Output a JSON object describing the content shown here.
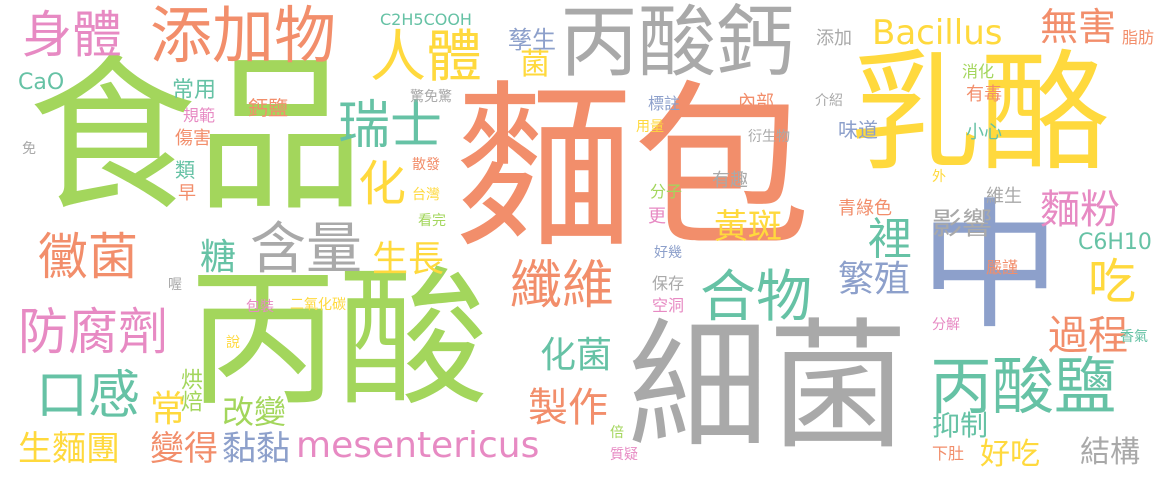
{
  "word_cloud": {
    "words": [
      {
        "id": "mianbao",
        "text": "麵包",
        "color": "#f28e6b"
      },
      {
        "id": "shipin",
        "text": "食品",
        "color": "#a3d65c"
      },
      {
        "id": "bingsuan",
        "text": "丙酸",
        "color": "#a3d65c"
      },
      {
        "id": "xijun",
        "text": "細菌",
        "color": "#a9a9a9"
      },
      {
        "id": "rulao",
        "text": "乳酪",
        "color": "#ffd93d"
      },
      {
        "id": "zhong",
        "text": "中",
        "color": "#8da0cb"
      },
      {
        "id": "bingsuangai",
        "text": "丙酸鈣",
        "color": "#a9a9a9"
      },
      {
        "id": "tianjiawu",
        "text": "添加物",
        "color": "#f28e6b"
      },
      {
        "id": "shenti",
        "text": "身體",
        "color": "#e78ac3"
      },
      {
        "id": "renti",
        "text": "人體",
        "color": "#ffd93d"
      },
      {
        "id": "bacillus",
        "text": "Bacillus",
        "color": "#ffd93d"
      },
      {
        "id": "wuhai",
        "text": "無害",
        "color": "#f28e6b"
      },
      {
        "id": "bingsuanyan",
        "text": "丙酸鹽",
        "color": "#66c2a5"
      },
      {
        "id": "ruishi",
        "text": "瑞士",
        "color": "#66c2a5"
      },
      {
        "id": "meijun",
        "text": "黴菌",
        "color": "#f28e6b"
      },
      {
        "id": "hanliang",
        "text": "含量",
        "color": "#a9a9a9"
      },
      {
        "id": "xianwei",
        "text": "纖維",
        "color": "#f28e6b"
      },
      {
        "id": "hewu",
        "text": "合物",
        "color": "#66c2a5"
      },
      {
        "id": "fangfuji",
        "text": "防腐劑",
        "color": "#e78ac3"
      },
      {
        "id": "kougan",
        "text": "口感",
        "color": "#66c2a5"
      },
      {
        "id": "mesentericus",
        "text": "mesentericus",
        "color": "#e78ac3"
      },
      {
        "id": "shengmiantuan",
        "text": "生麵團",
        "color": "#ffd93d"
      },
      {
        "id": "bianlde",
        "text": "變得",
        "color": "#f28e6b"
      },
      {
        "id": "nianian",
        "text": "黏黏",
        "color": "#8da0cb"
      },
      {
        "id": "zhizuo",
        "text": "製作",
        "color": "#f28e6b"
      },
      {
        "id": "huajun",
        "text": "化菌",
        "color": "#66c2a5"
      },
      {
        "id": "fanzhi",
        "text": "繁殖",
        "color": "#8da0cb"
      },
      {
        "id": "li",
        "text": "裡",
        "color": "#66c2a5"
      },
      {
        "id": "chi",
        "text": "吃",
        "color": "#ffd93d"
      },
      {
        "id": "guocheng",
        "text": "過程",
        "color": "#f28e6b"
      },
      {
        "id": "mianfen",
        "text": "麵粉",
        "color": "#e78ac3"
      },
      {
        "id": "huangban",
        "text": "黃斑",
        "color": "#ffd93d"
      },
      {
        "id": "yingxiang",
        "text": "影響",
        "color": "#a9a9a9"
      },
      {
        "id": "shengzhang",
        "text": "生長",
        "color": "#ffd93d"
      },
      {
        "id": "tang",
        "text": "糖",
        "color": "#66c2a5"
      },
      {
        "id": "hua",
        "text": "化",
        "color": "#ffd93d"
      },
      {
        "id": "gaibian",
        "text": "改變",
        "color": "#a3d65c"
      },
      {
        "id": "chang",
        "text": "常",
        "color": "#ffd93d"
      },
      {
        "id": "hongbei",
        "text": "烘焙",
        "color": "#a3d65c"
      },
      {
        "id": "yizhi",
        "text": "抑制",
        "color": "#66c2a5"
      },
      {
        "id": "haochi",
        "text": "好吃",
        "color": "#ffd93d"
      },
      {
        "id": "jiegou",
        "text": "結構",
        "color": "#a9a9a9"
      },
      {
        "id": "c6h10",
        "text": "C6H10",
        "color": "#66c2a5"
      },
      {
        "id": "jun",
        "text": "菌",
        "color": "#ffd93d"
      },
      {
        "id": "fusheng",
        "text": "孳生",
        "color": "#8da0cb"
      },
      {
        "id": "c2h5cooh",
        "text": "C2H5COOH",
        "color": "#66c2a5"
      },
      {
        "id": "cao",
        "text": "CaO",
        "color": "#66c2a5"
      },
      {
        "id": "changyong",
        "text": "常用",
        "color": "#66c2a5"
      },
      {
        "id": "guifan",
        "text": "規範",
        "color": "#e78ac3"
      },
      {
        "id": "shanghai",
        "text": "傷害",
        "color": "#f28e6b"
      },
      {
        "id": "lei",
        "text": "類",
        "color": "#66c2a5"
      },
      {
        "id": "zao",
        "text": "早",
        "color": "#f28e6b"
      },
      {
        "id": "mian",
        "text": "免",
        "color": "#a9a9a9"
      },
      {
        "id": "gaiyan",
        "text": "鈣鹽",
        "color": "#f28e6b"
      },
      {
        "id": "jingmianjing",
        "text": "驚免驚",
        "color": "#a9a9a9"
      },
      {
        "id": "biaozhu",
        "text": "標註",
        "color": "#8da0cb"
      },
      {
        "id": "yongliang",
        "text": "用量",
        "color": "#ffd93d"
      },
      {
        "id": "neibu",
        "text": "內部",
        "color": "#f28e6b"
      },
      {
        "id": "jieshao",
        "text": "介紹",
        "color": "#a9a9a9"
      },
      {
        "id": "weidao",
        "text": "味道",
        "color": "#8da0cb"
      },
      {
        "id": "yanshengwu",
        "text": "衍生物",
        "color": "#a9a9a9"
      },
      {
        "id": "sanfa",
        "text": "散發",
        "color": "#f28e6b"
      },
      {
        "id": "taiwan",
        "text": "台灣",
        "color": "#ffd93d"
      },
      {
        "id": "kanwan",
        "text": "看完",
        "color": "#a3d65c"
      },
      {
        "id": "fenzi",
        "text": "分子",
        "color": "#a3d65c"
      },
      {
        "id": "youqu",
        "text": "有趣",
        "color": "#a9a9a9"
      },
      {
        "id": "geng",
        "text": "更",
        "color": "#e78ac3"
      },
      {
        "id": "haoji",
        "text": "好幾",
        "color": "#8da0cb"
      },
      {
        "id": "baocun",
        "text": "保存",
        "color": "#a9a9a9"
      },
      {
        "id": "kongdong",
        "text": "空洞",
        "color": "#e78ac3"
      },
      {
        "id": "eryanghuatan",
        "text": "二氧化碳",
        "color": "#ffd93d"
      },
      {
        "id": "baozhuang",
        "text": "包裝",
        "color": "#e78ac3"
      },
      {
        "id": "wo",
        "text": "喔",
        "color": "#a9a9a9"
      },
      {
        "id": "shuo",
        "text": "說",
        "color": "#ffd93d"
      },
      {
        "id": "bei",
        "text": "倍",
        "color": "#a3d65c"
      },
      {
        "id": "zhiyi",
        "text": "質疑",
        "color": "#e78ac3"
      },
      {
        "id": "fenjie",
        "text": "分解",
        "color": "#e78ac3"
      },
      {
        "id": "xiangqi",
        "text": "香氣",
        "color": "#66c2a5"
      },
      {
        "id": "xiadu",
        "text": "下肚",
        "color": "#f28e6b"
      },
      {
        "id": "yanjin",
        "text": "嚴謹",
        "color": "#f28e6b"
      },
      {
        "id": "qinglvse",
        "text": "青綠色",
        "color": "#f28e6b"
      },
      {
        "id": "weisheng",
        "text": "維生",
        "color": "#a9a9a9"
      },
      {
        "id": "wai",
        "text": "外",
        "color": "#ffd93d"
      },
      {
        "id": "xiaoxin",
        "text": "小心",
        "color": "#66c2a5"
      },
      {
        "id": "youdu",
        "text": "有毒",
        "color": "#f28e6b"
      },
      {
        "id": "xiaohua",
        "text": "消化",
        "color": "#a3d65c"
      },
      {
        "id": "zhifang",
        "text": "脂肪",
        "color": "#f28e6b"
      },
      {
        "id": "tianjia",
        "text": "添加",
        "color": "#a9a9a9"
      }
    ]
  }
}
